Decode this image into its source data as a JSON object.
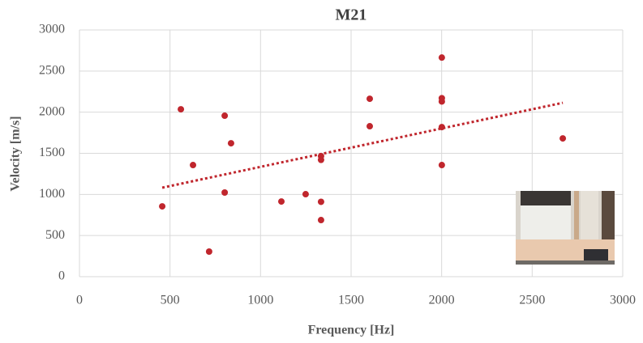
{
  "chart_data": {
    "type": "scatter",
    "title": "M21",
    "x_label": "Frequency [Hz]",
    "y_label": "Velocity [m/s]",
    "xlim": [
      0,
      3000
    ],
    "ylim": [
      0,
      3000
    ],
    "xticks": [
      0,
      500,
      1000,
      1500,
      2000,
      2500,
      3000
    ],
    "yticks": [
      0,
      500,
      1000,
      1500,
      2000,
      2500,
      3000
    ],
    "grid": true,
    "series": [
      {
        "color": "#c0262d",
        "x": [
          457,
          560,
          627,
          716,
          802,
          802,
          837,
          1115,
          1249,
          1334,
          1334,
          1334,
          1334,
          1603,
          1603,
          2001,
          2001,
          2001,
          2001,
          2001,
          2669
        ],
        "values": [
          855,
          2035,
          1357,
          305,
          1957,
          1023,
          1622,
          914,
          1003,
          1465,
          1420,
          910,
          688,
          2163,
          1829,
          2664,
          2170,
          2130,
          1819,
          1357,
          1681
        ]
      }
    ],
    "trendline": {
      "color": "#c0262d",
      "x": [
        457,
        2669
      ],
      "values": [
        1082,
        2114
      ]
    }
  }
}
